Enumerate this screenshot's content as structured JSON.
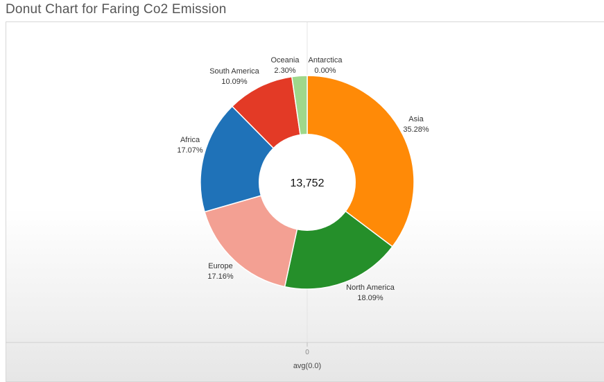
{
  "title": "Donut Chart for Faring Co2 Emission",
  "chart_data": {
    "type": "pie",
    "variant": "donut",
    "title": "Donut Chart for Faring Co2 Emission",
    "center_label": "13,752",
    "slices": [
      {
        "label": "Asia",
        "value": 35.28,
        "display": "35.28%",
        "color": "#ff8a07"
      },
      {
        "label": "North America",
        "value": 18.09,
        "display": "18.09%",
        "color": "#258f2a"
      },
      {
        "label": "Europe",
        "value": 17.16,
        "display": "17.16%",
        "color": "#f3a093"
      },
      {
        "label": "Africa",
        "value": 17.07,
        "display": "17.07%",
        "color": "#1f72b8"
      },
      {
        "label": "South America",
        "value": 10.09,
        "display": "10.09%",
        "color": "#e33a26"
      },
      {
        "label": "Oceania",
        "value": 2.3,
        "display": "2.30%",
        "color": "#9fd88b"
      },
      {
        "label": "Antarctica",
        "value": 0.0,
        "display": "0.00%",
        "color": "#c9e8bd"
      }
    ],
    "x_axis": {
      "tick": "0",
      "label": "avg(0.0)"
    }
  }
}
